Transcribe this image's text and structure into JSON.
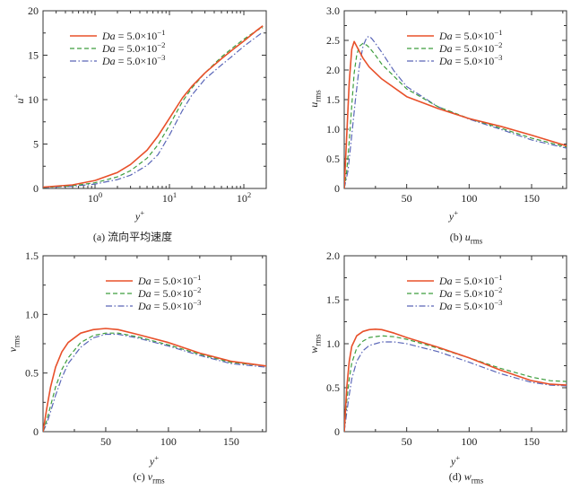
{
  "colors": {
    "Da = 5.0×10^-1": "#e8502a",
    "Da = 5.0×10^-2": "#3f9e3f",
    "Da = 5.0×10^-3": "#5a66b8",
    "axis": "#333333"
  },
  "chart_data": [
    {
      "id": "a",
      "type": "line",
      "caption": "(a) 流向平均速度",
      "xlabel": "y+",
      "ylabel": "u+",
      "xscale": "log",
      "xlim": [
        0.2,
        200
      ],
      "ylim": [
        0,
        20
      ],
      "xticks": [
        1,
        10,
        100
      ],
      "xtick_labels": [
        "10^0",
        "10^1",
        "10^2"
      ],
      "yticks": [
        0,
        5,
        10,
        15,
        20
      ],
      "ytick_labels": [
        "0",
        "5",
        "10",
        "15",
        "20"
      ],
      "legend_position": "top-left",
      "series": [
        {
          "name": "Da = 5.0×10^-1",
          "style": "solid",
          "x": [
            0.2,
            0.5,
            1,
            2,
            3,
            5,
            7,
            10,
            15,
            20,
            30,
            50,
            70,
            100,
            150,
            180
          ],
          "y": [
            0.15,
            0.4,
            0.9,
            1.8,
            2.7,
            4.3,
            5.9,
            7.9,
            10.2,
            11.5,
            13.0,
            14.6,
            15.6,
            16.6,
            17.8,
            18.3
          ]
        },
        {
          "name": "Da = 5.0×10^-2",
          "style": "dashed",
          "x": [
            0.2,
            0.5,
            1,
            2,
            3,
            5,
            7,
            10,
            15,
            20,
            30,
            50,
            70,
            100,
            150,
            180
          ],
          "y": [
            0.12,
            0.3,
            0.65,
            1.3,
            2.0,
            3.4,
            4.9,
            7.1,
            9.8,
            11.3,
            13.0,
            14.8,
            15.8,
            16.8,
            17.8,
            18.1
          ]
        },
        {
          "name": "Da = 5.0×10^-3",
          "style": "dashdot",
          "x": [
            0.2,
            0.5,
            1,
            2,
            3,
            5,
            7,
            10,
            15,
            20,
            30,
            50,
            70,
            100,
            150,
            180
          ],
          "y": [
            0.1,
            0.25,
            0.5,
            1.0,
            1.5,
            2.6,
            3.8,
            6.0,
            8.8,
            10.5,
            12.3,
            13.9,
            14.9,
            16.0,
            17.1,
            17.6
          ]
        }
      ]
    },
    {
      "id": "b",
      "type": "line",
      "caption": "(b) u_rms",
      "xlabel": "y+",
      "ylabel": "u_rms",
      "xscale": "linear",
      "xlim": [
        0,
        178
      ],
      "ylim": [
        0,
        3
      ],
      "xticks": [
        50,
        100,
        150
      ],
      "xtick_labels": [
        "50",
        "100",
        "150"
      ],
      "yticks": [
        0,
        0.5,
        1.0,
        1.5,
        2.0,
        2.5,
        3.0
      ],
      "ytick_labels": [
        "0",
        "0.5",
        "1.0",
        "1.5",
        "2.0",
        "2.5",
        "3.0"
      ],
      "legend_position": "top-right",
      "series": [
        {
          "name": "Da = 5.0×10^-1",
          "style": "solid",
          "x": [
            0,
            2,
            4,
            6,
            8,
            10,
            15,
            20,
            30,
            50,
            75,
            100,
            125,
            150,
            178
          ],
          "y": [
            0,
            0.9,
            1.8,
            2.35,
            2.48,
            2.4,
            2.2,
            2.05,
            1.85,
            1.55,
            1.35,
            1.18,
            1.05,
            0.9,
            0.72
          ]
        },
        {
          "name": "Da = 5.0×10^-2",
          "style": "dashed",
          "x": [
            0,
            2,
            4,
            6,
            8,
            10,
            12,
            15,
            18,
            20,
            25,
            30,
            50,
            75,
            100,
            125,
            150,
            178
          ],
          "y": [
            0,
            0.3,
            0.8,
            1.4,
            1.95,
            2.25,
            2.4,
            2.45,
            2.42,
            2.38,
            2.25,
            2.1,
            1.68,
            1.38,
            1.18,
            1.02,
            0.85,
            0.7
          ]
        },
        {
          "name": "Da = 5.0×10^-3",
          "style": "dashdot",
          "x": [
            0,
            3,
            6,
            9,
            12,
            15,
            18,
            20,
            22,
            25,
            30,
            40,
            50,
            75,
            100,
            125,
            150,
            178
          ],
          "y": [
            0,
            0.3,
            0.9,
            1.5,
            2.05,
            2.4,
            2.55,
            2.57,
            2.53,
            2.45,
            2.3,
            1.98,
            1.72,
            1.38,
            1.17,
            1.0,
            0.82,
            0.68
          ]
        }
      ]
    },
    {
      "id": "c",
      "type": "line",
      "caption": "(c) v_rms",
      "xlabel": "y+",
      "ylabel": "v_rms",
      "xscale": "linear",
      "xlim": [
        0,
        178
      ],
      "ylim": [
        0,
        1.5
      ],
      "xticks": [
        50,
        100,
        150
      ],
      "xtick_labels": [
        "50",
        "100",
        "150"
      ],
      "yticks": [
        0,
        0.5,
        1.0,
        1.5
      ],
      "ytick_labels": [
        "0",
        "0.5",
        "1.0",
        "1.5"
      ],
      "legend_position": "top-right",
      "series": [
        {
          "name": "Da = 5.0×10^-1",
          "style": "solid",
          "x": [
            0,
            3,
            6,
            10,
            15,
            20,
            30,
            40,
            50,
            60,
            75,
            100,
            125,
            150,
            178
          ],
          "y": [
            0,
            0.2,
            0.38,
            0.55,
            0.68,
            0.76,
            0.84,
            0.87,
            0.88,
            0.87,
            0.83,
            0.76,
            0.67,
            0.6,
            0.56
          ]
        },
        {
          "name": "Da = 5.0×10^-2",
          "style": "dashed",
          "x": [
            0,
            3,
            6,
            10,
            15,
            20,
            30,
            40,
            50,
            60,
            75,
            100,
            125,
            150,
            178
          ],
          "y": [
            0,
            0.1,
            0.22,
            0.38,
            0.53,
            0.63,
            0.76,
            0.82,
            0.84,
            0.84,
            0.81,
            0.74,
            0.66,
            0.59,
            0.56
          ]
        },
        {
          "name": "Da = 5.0×10^-3",
          "style": "dashdot",
          "x": [
            0,
            3,
            6,
            10,
            15,
            20,
            30,
            40,
            50,
            60,
            75,
            100,
            125,
            150,
            178
          ],
          "y": [
            0,
            0.07,
            0.17,
            0.31,
            0.46,
            0.58,
            0.72,
            0.8,
            0.83,
            0.83,
            0.8,
            0.73,
            0.65,
            0.58,
            0.55
          ]
        }
      ]
    },
    {
      "id": "d",
      "type": "line",
      "caption": "(d) w_rms",
      "xlabel": "y+",
      "ylabel": "w_rms",
      "xscale": "linear",
      "xlim": [
        0,
        178
      ],
      "ylim": [
        0,
        2.0
      ],
      "xticks": [
        50,
        100,
        150
      ],
      "xtick_labels": [
        "50",
        "100",
        "150"
      ],
      "yticks": [
        0,
        0.5,
        1.0,
        1.5,
        2.0
      ],
      "ytick_labels": [
        "0",
        "0.5",
        "1.0",
        "1.5",
        "2.0"
      ],
      "legend_position": "top-right",
      "series": [
        {
          "name": "Da = 5.0×10^-1",
          "style": "solid",
          "x": [
            0,
            2,
            4,
            6,
            10,
            15,
            20,
            25,
            30,
            40,
            50,
            75,
            100,
            125,
            150,
            165,
            178
          ],
          "y": [
            0,
            0.5,
            0.8,
            0.97,
            1.09,
            1.14,
            1.16,
            1.165,
            1.16,
            1.12,
            1.07,
            0.96,
            0.84,
            0.7,
            0.58,
            0.54,
            0.53
          ]
        },
        {
          "name": "Da = 5.0×10^-2",
          "style": "dashed",
          "x": [
            0,
            2,
            4,
            6,
            10,
            15,
            20,
            30,
            40,
            50,
            75,
            100,
            125,
            150,
            165,
            178
          ],
          "y": [
            0,
            0.35,
            0.6,
            0.78,
            0.95,
            1.03,
            1.07,
            1.09,
            1.08,
            1.05,
            0.95,
            0.84,
            0.72,
            0.62,
            0.58,
            0.57
          ]
        },
        {
          "name": "Da = 5.0×10^-3",
          "style": "dashdot",
          "x": [
            0,
            2,
            4,
            6,
            10,
            15,
            20,
            30,
            40,
            50,
            75,
            100,
            125,
            150,
            165,
            178
          ],
          "y": [
            0,
            0.22,
            0.42,
            0.6,
            0.8,
            0.92,
            0.98,
            1.02,
            1.02,
            1.0,
            0.91,
            0.79,
            0.66,
            0.56,
            0.53,
            0.52
          ]
        }
      ]
    }
  ]
}
